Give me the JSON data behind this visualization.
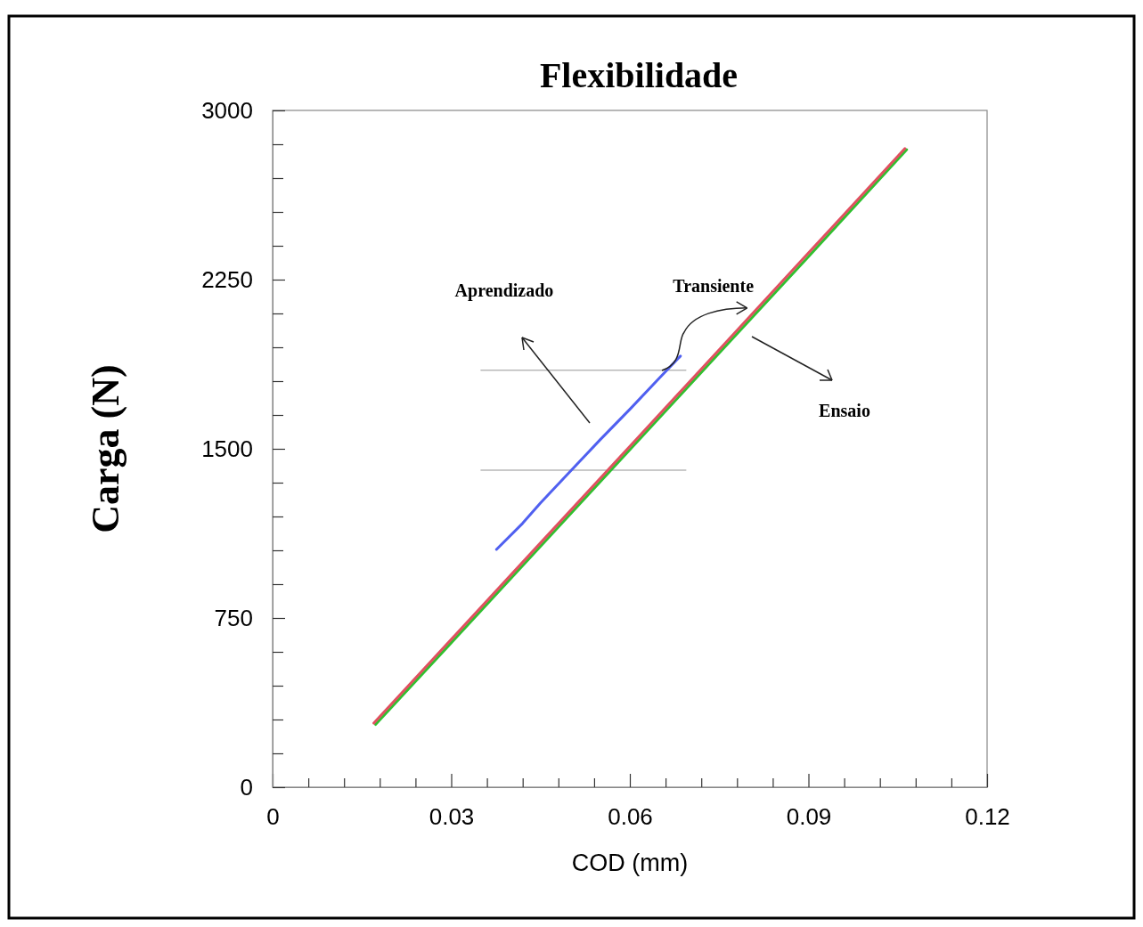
{
  "chart_data": {
    "type": "line",
    "title": "Flexibilidade",
    "xlabel": "COD (mm)",
    "ylabel": "Carga (N)",
    "xlim": [
      0,
      0.12
    ],
    "ylim": [
      0,
      3000
    ],
    "xticks": [
      0,
      {
        "value": 0.006,
        "label": null
      },
      {
        "value": 0.012,
        "label": null
      },
      {
        "value": 0.018,
        "label": null
      },
      {
        "value": 0.024,
        "label": null
      },
      0.03,
      {
        "value": 0.036,
        "label": null
      },
      {
        "value": 0.042,
        "label": null
      },
      {
        "value": 0.048,
        "label": null
      },
      {
        "value": 0.054,
        "label": null
      },
      0.06,
      {
        "value": 0.066,
        "label": null
      },
      {
        "value": 0.072,
        "label": null
      },
      {
        "value": 0.078,
        "label": null
      },
      {
        "value": 0.084,
        "label": null
      },
      0.09,
      {
        "value": 0.096,
        "label": null
      },
      {
        "value": 0.102,
        "label": null
      },
      {
        "value": 0.108,
        "label": null
      },
      {
        "value": 0.114,
        "label": null
      },
      0.12
    ],
    "yticks": [
      0,
      {
        "value": 150,
        "label": null
      },
      {
        "value": 300,
        "label": null
      },
      {
        "value": 450,
        "label": null
      },
      {
        "value": 600,
        "label": null
      },
      750,
      {
        "value": 900,
        "label": null
      },
      {
        "value": 1050,
        "label": null
      },
      {
        "value": 1200,
        "label": null
      },
      {
        "value": 1350,
        "label": null
      },
      1500,
      {
        "value": 1650,
        "label": null
      },
      {
        "value": 1800,
        "label": null
      },
      {
        "value": 1950,
        "label": null
      },
      {
        "value": 2100,
        "label": null
      },
      2250,
      {
        "value": 2400,
        "label": null
      },
      {
        "value": 2550,
        "label": null
      },
      {
        "value": 2700,
        "label": null
      },
      {
        "value": 2850,
        "label": null
      },
      3000
    ],
    "grid": false,
    "marker": "none",
    "line_style": "solid",
    "series": [
      {
        "color": "#b8b8b8",
        "x": [
          0.035,
          0.0694
        ],
        "values": [
          1848,
          1848
        ]
      },
      {
        "color": "#b8b8b8",
        "x": [
          0.035,
          0.0694
        ],
        "values": [
          1405,
          1405
        ]
      },
      {
        "color": "#30c030",
        "x": [
          0.0173,
          0.03,
          0.045,
          0.06,
          0.075,
          0.09,
          0.1065
        ],
        "values": [
          278,
          640,
          1068,
          1496,
          1924,
          2352,
          2826
        ]
      },
      {
        "color": "#e05060",
        "x": [
          0.017,
          0.03,
          0.045,
          0.06,
          0.075,
          0.09,
          0.1062
        ],
        "values": [
          284,
          655,
          1083,
          1511,
          1939,
          2368,
          2831
        ]
      },
      {
        "color": "#5060f0",
        "x": [
          0.0376,
          0.042,
          0.045,
          0.05,
          0.055,
          0.06,
          0.065,
          0.0685
        ],
        "values": [
          1054,
          1170,
          1260,
          1400,
          1540,
          1675,
          1815,
          1911
        ]
      }
    ],
    "annotations": [
      "Aprendizado",
      {
        "text": "Transiente",
        "x": 0.08,
        "y": 2085
      },
      "Ensaio"
    ]
  }
}
